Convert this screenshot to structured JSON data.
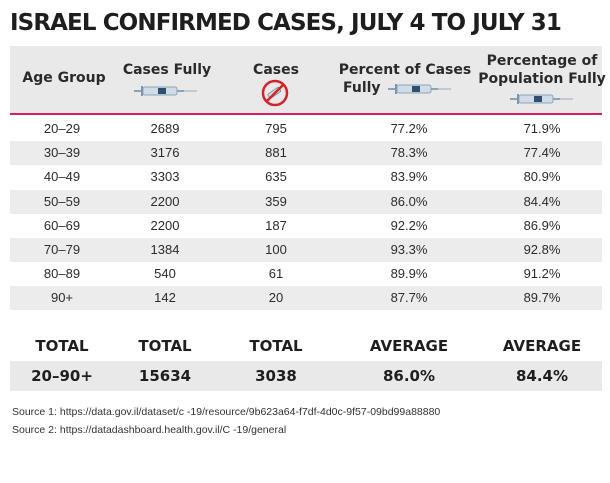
{
  "title": "ISRAEL CONFIRMED CASES, JULY 4 TO JULY 31",
  "headers": {
    "age_group": "Age Group",
    "cases_fully": "Cases Fully",
    "cases": "Cases",
    "percent_cases_fully_l1": "Percent of Cases",
    "percent_cases_fully_l2": "Fully",
    "pct_population_fully_l1": "Percentage of",
    "pct_population_fully_l2": "Population Fully"
  },
  "icons": {
    "syringe": "syringe-icon",
    "no_syringe": "no-syringe-icon"
  },
  "colors": {
    "accent_line": "#d81e5b",
    "prohibition": "#d8202a",
    "row_shade": "#ececec"
  },
  "chart_data": {
    "type": "table",
    "title": "ISRAEL CONFIRMED CASES, JULY 4 TO JULY 31",
    "rows": [
      {
        "age": "20–29",
        "cases_fully": "2689",
        "cases": "795",
        "pct_cases_fully": "77.2%",
        "pct_population_fully": "71.9%"
      },
      {
        "age": "30–39",
        "cases_fully": "3176",
        "cases": "881",
        "pct_cases_fully": "78.3%",
        "pct_population_fully": "77.4%"
      },
      {
        "age": "40–49",
        "cases_fully": "3303",
        "cases": "635",
        "pct_cases_fully": "83.9%",
        "pct_population_fully": "80.9%"
      },
      {
        "age": "50–59",
        "cases_fully": "2200",
        "cases": "359",
        "pct_cases_fully": "86.0%",
        "pct_population_fully": "84.4%"
      },
      {
        "age": "60–69",
        "cases_fully": "2200",
        "cases": "187",
        "pct_cases_fully": "92.2%",
        "pct_population_fully": "86.9%"
      },
      {
        "age": "70–79",
        "cases_fully": "1384",
        "cases": "100",
        "pct_cases_fully": "93.3%",
        "pct_population_fully": "92.8%"
      },
      {
        "age": "80–89",
        "cases_fully": "540",
        "cases": "61",
        "pct_cases_fully": "89.9%",
        "pct_population_fully": "91.2%"
      },
      {
        "age": "90+",
        "cases_fully": "142",
        "cases": "20",
        "pct_cases_fully": "87.7%",
        "pct_population_fully": "89.7%"
      }
    ],
    "footer_labels": [
      "TOTAL",
      "TOTAL",
      "TOTAL",
      "AVERAGE",
      "AVERAGE"
    ],
    "summary": {
      "age": "20–90+",
      "cases_fully": "15634",
      "cases": "3038",
      "pct_cases_fully": "86.0%",
      "pct_population_fully": "84.4%"
    }
  },
  "sources": {
    "source1": "Source 1: https://data.gov.il/dataset/c        -19/resource/9b623a64-f7df-4d0c-9f57-09bd99a88880",
    "source2": "Source 2: https://datadashboard.health.gov.il/C         -19/general"
  }
}
